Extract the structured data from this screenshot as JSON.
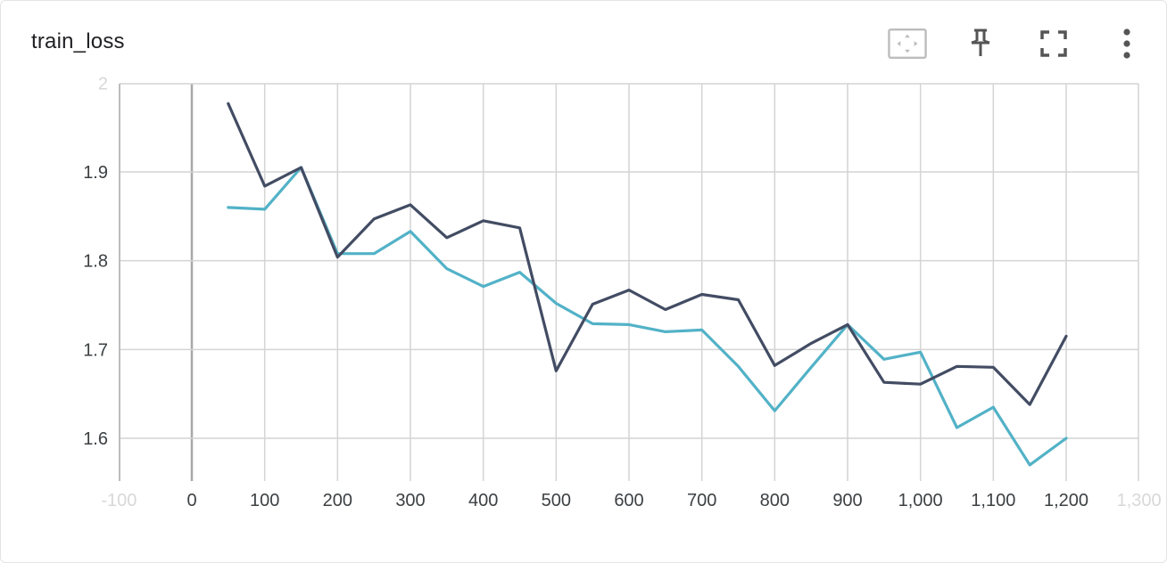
{
  "card": {
    "title": "train_loss"
  },
  "toolbar": {
    "icons": [
      "fit-domain-icon",
      "pin-icon",
      "fullscreen-icon",
      "more-vert-icon"
    ]
  },
  "colors": {
    "series_dark": "#424c63",
    "series_light": "#52b2c7",
    "grid": "#d4d4d4",
    "axis": "#a8a8a8"
  },
  "chart_data": {
    "type": "line",
    "title": "train_loss",
    "xlabel": "",
    "ylabel": "",
    "xlim": [
      -100,
      1300
    ],
    "ylim": [
      1.55,
      2.0
    ],
    "x_ticks": [
      -100,
      0,
      100,
      200,
      300,
      400,
      500,
      600,
      700,
      800,
      900,
      1000,
      1100,
      1200,
      1300
    ],
    "x_tick_labels": [
      "-100",
      "0",
      "100",
      "200",
      "300",
      "400",
      "500",
      "600",
      "700",
      "800",
      "900",
      "1,000",
      "1,100",
      "1,200",
      "1,300"
    ],
    "y_ticks": [
      1.6,
      1.7,
      1.8,
      1.9,
      2.0
    ],
    "y_tick_labels": [
      "1.6",
      "1.7",
      "1.8",
      "1.9",
      "2"
    ],
    "grid": true,
    "legend": "none",
    "x": [
      50,
      100,
      150,
      200,
      250,
      300,
      350,
      400,
      450,
      500,
      550,
      600,
      650,
      700,
      750,
      800,
      850,
      900,
      950,
      1000,
      1050,
      1100,
      1150,
      1200
    ],
    "series": [
      {
        "color": "#424c63",
        "values": [
          1.977,
          1.884,
          1.905,
          1.804,
          1.847,
          1.863,
          1.826,
          1.845,
          1.837,
          1.676,
          1.751,
          1.767,
          1.745,
          1.762,
          1.756,
          1.682,
          1.707,
          1.728,
          1.663,
          1.661,
          1.681,
          1.68,
          1.638,
          1.715
        ]
      },
      {
        "color": "#52b2c7",
        "values": [
          1.86,
          1.858,
          1.905,
          1.808,
          1.808,
          1.833,
          1.791,
          1.771,
          1.787,
          1.752,
          1.729,
          1.728,
          1.72,
          1.722,
          1.681,
          1.631,
          1.68,
          1.728,
          1.689,
          1.697,
          1.612,
          1.635,
          1.57,
          1.6
        ]
      }
    ]
  }
}
